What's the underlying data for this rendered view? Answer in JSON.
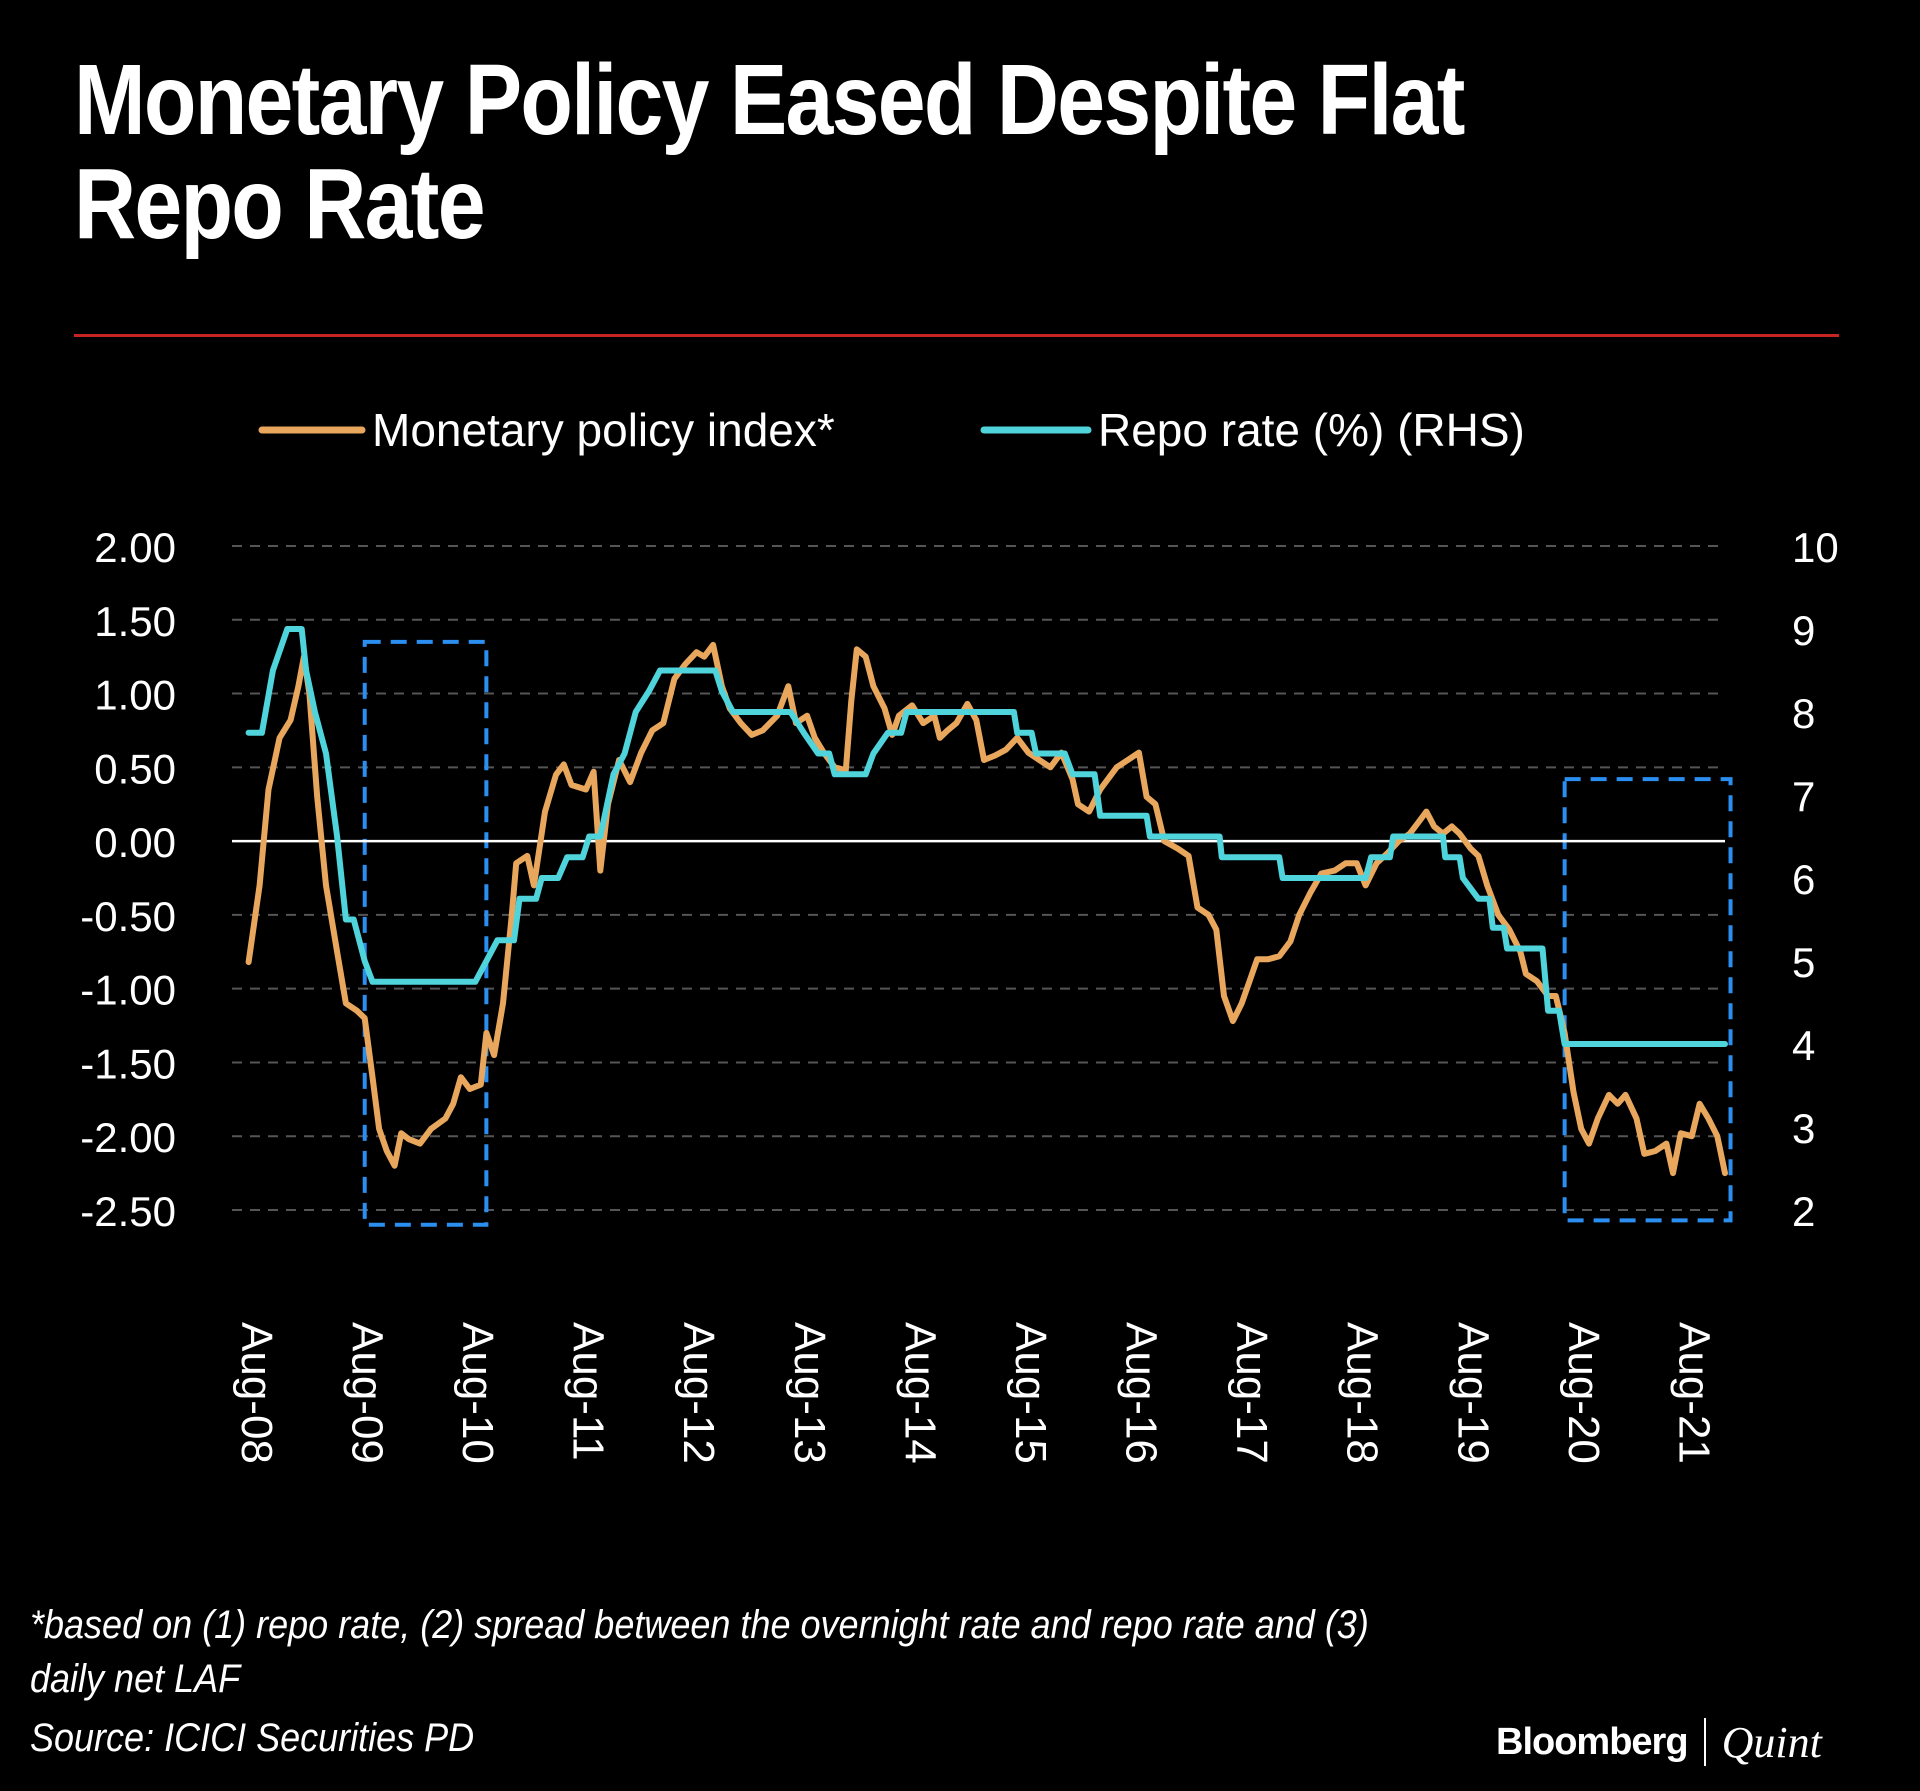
{
  "header": {
    "title": "Monetary Policy Eased Despite Flat Repo Rate"
  },
  "footer": {
    "footnote": "*based on (1) repo rate, (2) spread between the overnight rate and repo rate and (3) daily net LAF",
    "source": "Source: ICICI Securities PD",
    "brand_primary": "Bloomberg",
    "brand_secondary": "Quint"
  },
  "colors": {
    "background": "#000000",
    "index_line": "#e8a75c",
    "repo_line": "#4fd4dc",
    "highlight_box": "#2a8ff0",
    "title_rule": "#c62323"
  },
  "chart_data": {
    "type": "line",
    "title": "Monetary Policy Eased Despite Flat Repo Rate",
    "legend_position": "top",
    "grid": true,
    "x_ticks": [
      "Aug-08",
      "Aug-09",
      "Aug-10",
      "Aug-11",
      "Aug-12",
      "Aug-13",
      "Aug-14",
      "Aug-15",
      "Aug-16",
      "Aug-17",
      "Aug-18",
      "Aug-19",
      "Aug-20",
      "Aug-21"
    ],
    "x_range": [
      2008.35,
      2021.85
    ],
    "y_left": {
      "range": [
        -2.5,
        2.0
      ],
      "ticks": [
        "2.00",
        "1.50",
        "1.00",
        "0.50",
        "0.00",
        "-0.50",
        "-1.00",
        "-1.50",
        "-2.00",
        "-2.50"
      ]
    },
    "y_right": {
      "range": [
        2,
        10
      ],
      "ticks": [
        "10",
        "9",
        "8",
        "7",
        "6",
        "5",
        "4",
        "3",
        "2"
      ]
    },
    "highlights": [
      {
        "x": [
          2009.55,
          2010.65
        ],
        "y_left": [
          -2.6,
          1.35
        ]
      },
      {
        "x": [
          2020.4,
          2021.9
        ],
        "y_left": [
          -2.57,
          0.42
        ]
      }
    ],
    "series": [
      {
        "name": "Monetary policy index*",
        "axis": "left",
        "points": [
          [
            2008.5,
            -0.82
          ],
          [
            2008.6,
            -0.3
          ],
          [
            2008.68,
            0.35
          ],
          [
            2008.78,
            0.7
          ],
          [
            2008.88,
            0.82
          ],
          [
            2008.95,
            1.05
          ],
          [
            2009.0,
            1.25
          ],
          [
            2009.05,
            1.0
          ],
          [
            2009.12,
            0.3
          ],
          [
            2009.2,
            -0.3
          ],
          [
            2009.3,
            -0.75
          ],
          [
            2009.38,
            -1.1
          ],
          [
            2009.48,
            -1.15
          ],
          [
            2009.55,
            -1.2
          ],
          [
            2009.62,
            -1.6
          ],
          [
            2009.68,
            -1.95
          ],
          [
            2009.75,
            -2.1
          ],
          [
            2009.82,
            -2.2
          ],
          [
            2009.88,
            -1.98
          ],
          [
            2009.95,
            -2.02
          ],
          [
            2010.05,
            -2.05
          ],
          [
            2010.15,
            -1.95
          ],
          [
            2010.28,
            -1.88
          ],
          [
            2010.35,
            -1.78
          ],
          [
            2010.42,
            -1.6
          ],
          [
            2010.5,
            -1.68
          ],
          [
            2010.6,
            -1.65
          ],
          [
            2010.65,
            -1.3
          ],
          [
            2010.72,
            -1.45
          ],
          [
            2010.8,
            -1.1
          ],
          [
            2010.88,
            -0.5
          ],
          [
            2010.92,
            -0.15
          ],
          [
            2011.02,
            -0.1
          ],
          [
            2011.08,
            -0.3
          ],
          [
            2011.18,
            0.2
          ],
          [
            2011.28,
            0.45
          ],
          [
            2011.35,
            0.52
          ],
          [
            2011.42,
            0.38
          ],
          [
            2011.55,
            0.35
          ],
          [
            2011.62,
            0.47
          ],
          [
            2011.68,
            -0.2
          ],
          [
            2011.75,
            0.25
          ],
          [
            2011.85,
            0.55
          ],
          [
            2011.95,
            0.4
          ],
          [
            2012.05,
            0.6
          ],
          [
            2012.15,
            0.75
          ],
          [
            2012.25,
            0.8
          ],
          [
            2012.35,
            1.1
          ],
          [
            2012.45,
            1.2
          ],
          [
            2012.55,
            1.28
          ],
          [
            2012.62,
            1.25
          ],
          [
            2012.7,
            1.33
          ],
          [
            2012.78,
            1.05
          ],
          [
            2012.85,
            0.9
          ],
          [
            2012.95,
            0.8
          ],
          [
            2013.05,
            0.72
          ],
          [
            2013.15,
            0.75
          ],
          [
            2013.28,
            0.85
          ],
          [
            2013.38,
            1.05
          ],
          [
            2013.45,
            0.8
          ],
          [
            2013.55,
            0.85
          ],
          [
            2013.62,
            0.7
          ],
          [
            2013.7,
            0.6
          ],
          [
            2013.8,
            0.5
          ],
          [
            2013.9,
            0.48
          ],
          [
            2013.95,
            0.95
          ],
          [
            2014.0,
            1.3
          ],
          [
            2014.08,
            1.25
          ],
          [
            2014.15,
            1.05
          ],
          [
            2014.25,
            0.9
          ],
          [
            2014.32,
            0.72
          ],
          [
            2014.38,
            0.85
          ],
          [
            2014.5,
            0.92
          ],
          [
            2014.6,
            0.8
          ],
          [
            2014.7,
            0.85
          ],
          [
            2014.75,
            0.7
          ],
          [
            2014.82,
            0.75
          ],
          [
            2014.9,
            0.8
          ],
          [
            2015.0,
            0.93
          ],
          [
            2015.08,
            0.82
          ],
          [
            2015.15,
            0.55
          ],
          [
            2015.25,
            0.58
          ],
          [
            2015.35,
            0.62
          ],
          [
            2015.45,
            0.7
          ],
          [
            2015.55,
            0.6
          ],
          [
            2015.65,
            0.55
          ],
          [
            2015.75,
            0.5
          ],
          [
            2015.85,
            0.6
          ],
          [
            2015.95,
            0.42
          ],
          [
            2016.0,
            0.25
          ],
          [
            2016.1,
            0.2
          ],
          [
            2016.2,
            0.35
          ],
          [
            2016.35,
            0.5
          ],
          [
            2016.45,
            0.55
          ],
          [
            2016.55,
            0.6
          ],
          [
            2016.62,
            0.3
          ],
          [
            2016.7,
            0.25
          ],
          [
            2016.78,
            0.0
          ],
          [
            2016.9,
            -0.05
          ],
          [
            2017.0,
            -0.1
          ],
          [
            2017.08,
            -0.45
          ],
          [
            2017.18,
            -0.5
          ],
          [
            2017.25,
            -0.6
          ],
          [
            2017.32,
            -1.05
          ],
          [
            2017.4,
            -1.22
          ],
          [
            2017.48,
            -1.1
          ],
          [
            2017.55,
            -0.95
          ],
          [
            2017.62,
            -0.8
          ],
          [
            2017.72,
            -0.8
          ],
          [
            2017.82,
            -0.78
          ],
          [
            2017.92,
            -0.68
          ],
          [
            2018.0,
            -0.5
          ],
          [
            2018.1,
            -0.35
          ],
          [
            2018.2,
            -0.22
          ],
          [
            2018.32,
            -0.2
          ],
          [
            2018.42,
            -0.15
          ],
          [
            2018.52,
            -0.15
          ],
          [
            2018.6,
            -0.3
          ],
          [
            2018.7,
            -0.15
          ],
          [
            2018.8,
            -0.08
          ],
          [
            2018.9,
            0.0
          ],
          [
            2019.0,
            0.05
          ],
          [
            2019.1,
            0.15
          ],
          [
            2019.15,
            0.2
          ],
          [
            2019.22,
            0.1
          ],
          [
            2019.3,
            0.05
          ],
          [
            2019.38,
            0.1
          ],
          [
            2019.45,
            0.05
          ],
          [
            2019.55,
            -0.05
          ],
          [
            2019.62,
            -0.1
          ],
          [
            2019.7,
            -0.3
          ],
          [
            2019.8,
            -0.5
          ],
          [
            2019.9,
            -0.6
          ],
          [
            2020.0,
            -0.75
          ],
          [
            2020.05,
            -0.9
          ],
          [
            2020.15,
            -0.95
          ],
          [
            2020.25,
            -1.05
          ],
          [
            2020.32,
            -1.05
          ],
          [
            2020.4,
            -1.3
          ],
          [
            2020.48,
            -1.7
          ],
          [
            2020.55,
            -1.95
          ],
          [
            2020.62,
            -2.05
          ],
          [
            2020.7,
            -1.88
          ],
          [
            2020.8,
            -1.72
          ],
          [
            2020.88,
            -1.78
          ],
          [
            2020.95,
            -1.72
          ],
          [
            2021.05,
            -1.88
          ],
          [
            2021.12,
            -2.12
          ],
          [
            2021.22,
            -2.1
          ],
          [
            2021.32,
            -2.05
          ],
          [
            2021.38,
            -2.25
          ],
          [
            2021.45,
            -1.98
          ],
          [
            2021.55,
            -2.0
          ],
          [
            2021.62,
            -1.78
          ],
          [
            2021.7,
            -1.88
          ],
          [
            2021.78,
            -2.0
          ],
          [
            2021.85,
            -2.25
          ]
        ]
      },
      {
        "name": "Repo rate (%) (RHS)",
        "axis": "right",
        "points": [
          [
            2008.5,
            7.75
          ],
          [
            2008.62,
            7.75
          ],
          [
            2008.72,
            8.5
          ],
          [
            2008.85,
            9.0
          ],
          [
            2008.98,
            9.0
          ],
          [
            2009.02,
            8.5
          ],
          [
            2009.1,
            8.0
          ],
          [
            2009.2,
            7.5
          ],
          [
            2009.3,
            6.5
          ],
          [
            2009.38,
            5.5
          ],
          [
            2009.45,
            5.5
          ],
          [
            2009.55,
            5.0
          ],
          [
            2009.62,
            4.75
          ],
          [
            2009.7,
            4.75
          ],
          [
            2010.55,
            4.75
          ],
          [
            2010.65,
            5.0
          ],
          [
            2010.75,
            5.25
          ],
          [
            2010.9,
            5.25
          ],
          [
            2010.95,
            5.75
          ],
          [
            2011.1,
            5.75
          ],
          [
            2011.15,
            6.0
          ],
          [
            2011.3,
            6.0
          ],
          [
            2011.38,
            6.25
          ],
          [
            2011.52,
            6.25
          ],
          [
            2011.58,
            6.5
          ],
          [
            2011.68,
            6.5
          ],
          [
            2011.72,
            6.75
          ],
          [
            2011.8,
            7.25
          ],
          [
            2011.9,
            7.5
          ],
          [
            2012.0,
            8.0
          ],
          [
            2012.12,
            8.25
          ],
          [
            2012.22,
            8.5
          ],
          [
            2012.45,
            8.5
          ],
          [
            2012.55,
            8.5
          ],
          [
            2012.72,
            8.5
          ],
          [
            2012.78,
            8.25
          ],
          [
            2012.88,
            8.0
          ],
          [
            2013.4,
            8.0
          ],
          [
            2013.52,
            7.75
          ],
          [
            2013.65,
            7.5
          ],
          [
            2013.75,
            7.5
          ],
          [
            2013.8,
            7.25
          ],
          [
            2014.08,
            7.25
          ],
          [
            2014.15,
            7.5
          ],
          [
            2014.28,
            7.75
          ],
          [
            2014.4,
            7.75
          ],
          [
            2014.45,
            8.0
          ],
          [
            2015.42,
            8.0
          ],
          [
            2015.45,
            7.75
          ],
          [
            2015.58,
            7.75
          ],
          [
            2015.62,
            7.5
          ],
          [
            2015.88,
            7.5
          ],
          [
            2015.95,
            7.25
          ],
          [
            2016.15,
            7.25
          ],
          [
            2016.2,
            6.75
          ],
          [
            2016.62,
            6.75
          ],
          [
            2016.65,
            6.5
          ],
          [
            2017.28,
            6.5
          ],
          [
            2017.3,
            6.25
          ],
          [
            2017.82,
            6.25
          ],
          [
            2017.85,
            6.0
          ],
          [
            2018.6,
            6.0
          ],
          [
            2018.65,
            6.25
          ],
          [
            2018.82,
            6.25
          ],
          [
            2018.85,
            6.5
          ],
          [
            2019.3,
            6.5
          ],
          [
            2019.32,
            6.25
          ],
          [
            2019.45,
            6.25
          ],
          [
            2019.48,
            6.0
          ],
          [
            2019.62,
            5.75
          ],
          [
            2019.72,
            5.75
          ],
          [
            2019.75,
            5.4
          ],
          [
            2019.85,
            5.4
          ],
          [
            2019.88,
            5.15
          ],
          [
            2020.2,
            5.15
          ],
          [
            2020.25,
            4.4
          ],
          [
            2020.35,
            4.4
          ],
          [
            2020.4,
            4.0
          ],
          [
            2021.85,
            4.0
          ]
        ]
      }
    ]
  }
}
